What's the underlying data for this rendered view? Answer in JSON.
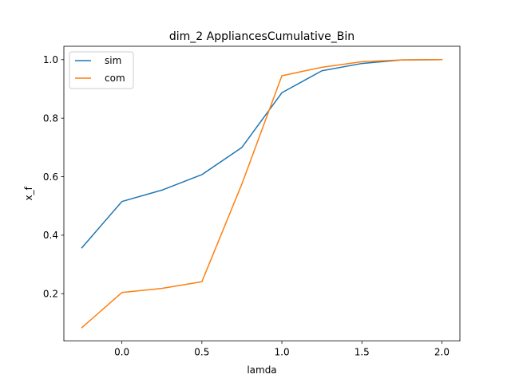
{
  "chart_data": {
    "type": "line",
    "title": "dim_2 AppliancesCumulative_Bin",
    "xlabel": "lamda",
    "ylabel": "x_f",
    "x": [
      -0.25,
      0.0,
      0.25,
      0.5,
      0.75,
      1.0,
      1.25,
      1.5,
      1.75,
      2.0
    ],
    "series": [
      {
        "name": "sim",
        "color": "#1f77b4",
        "values": [
          0.357,
          0.515,
          0.554,
          0.607,
          0.7,
          0.887,
          0.962,
          0.987,
          0.999,
          1.0
        ]
      },
      {
        "name": "com",
        "color": "#ff7f0e",
        "values": [
          0.084,
          0.204,
          0.218,
          0.241,
          0.575,
          0.945,
          0.974,
          0.993,
          0.999,
          1.0
        ]
      }
    ],
    "xlim": [
      -0.3625,
      2.1125
    ],
    "ylim": [
      0.0382,
      1.0458
    ],
    "xticks": [
      0.0,
      0.5,
      1.0,
      1.5,
      2.0
    ],
    "xtick_labels": [
      "0.0",
      "0.5",
      "1.0",
      "1.5",
      "2.0"
    ],
    "yticks": [
      0.2,
      0.4,
      0.6,
      0.8,
      1.0
    ],
    "ytick_labels": [
      "0.2",
      "0.4",
      "0.6",
      "0.8",
      "1.0"
    ],
    "grid": false,
    "legend_position": "top-left"
  }
}
